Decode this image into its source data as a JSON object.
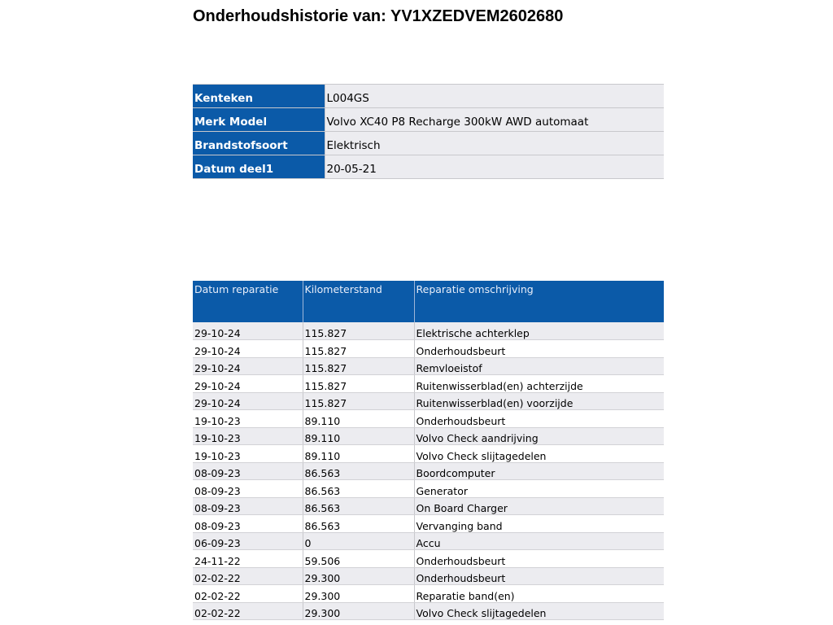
{
  "title": "Onderhoudshistorie van: YV1XZEDVEM2602680",
  "vehicle": [
    {
      "label": "Kenteken",
      "value": "L004GS"
    },
    {
      "label": "Merk Model",
      "value": "Volvo XC40 P8 Recharge 300kW AWD automaat"
    },
    {
      "label": "Brandstofsoort",
      "value": "Elektrisch"
    },
    {
      "label": "Datum deel1",
      "value": "20-05-21"
    }
  ],
  "history": {
    "headers": [
      "Datum reparatie",
      "Kilometerstand",
      "Reparatie omschrijving"
    ],
    "rows": [
      [
        "29-10-24",
        "115.827",
        "Elektrische achterklep"
      ],
      [
        "29-10-24",
        "115.827",
        "Onderhoudsbeurt"
      ],
      [
        "29-10-24",
        "115.827",
        "Remvloeistof"
      ],
      [
        "29-10-24",
        "115.827",
        "Ruitenwisserblad(en) achterzijde"
      ],
      [
        "29-10-24",
        "115.827",
        "Ruitenwisserblad(en) voorzijde"
      ],
      [
        "19-10-23",
        "89.110",
        "Onderhoudsbeurt"
      ],
      [
        "19-10-23",
        "89.110",
        "Volvo Check aandrijving"
      ],
      [
        "19-10-23",
        "89.110",
        "Volvo Check slijtagedelen"
      ],
      [
        "08-09-23",
        "86.563",
        "Boordcomputer"
      ],
      [
        "08-09-23",
        "86.563",
        "Generator"
      ],
      [
        "08-09-23",
        "86.563",
        "On Board Charger"
      ],
      [
        "08-09-23",
        "86.563",
        "Vervanging band"
      ],
      [
        "06-09-23",
        "0",
        "Accu"
      ],
      [
        "24-11-22",
        "59.506",
        "Onderhoudsbeurt"
      ],
      [
        "02-02-22",
        "29.300",
        "Onderhoudsbeurt"
      ],
      [
        "02-02-22",
        "29.300",
        "Reparatie band(en)"
      ],
      [
        "02-02-22",
        "29.300",
        "Volvo Check slijtagedelen"
      ]
    ]
  },
  "colors": {
    "header_blue": "#0b5aa8",
    "row_gray": "#ececf0"
  }
}
